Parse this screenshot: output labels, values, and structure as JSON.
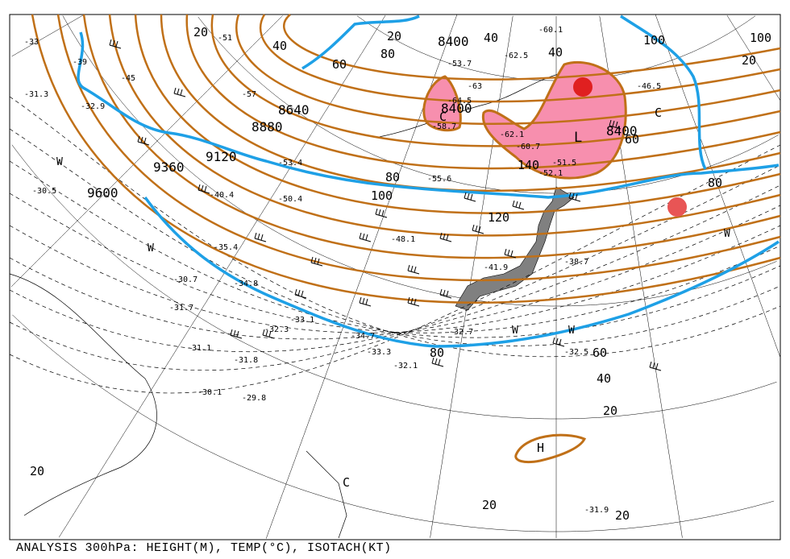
{
  "caption": "ANALYSIS 300hPa: HEIGHT(M), TEMP(°C), ISOTACH(KT)",
  "colors": {
    "height_contour": "#c07018",
    "jet_axis": "#1ea0e6",
    "low_fill": "#f78fae",
    "low_center": "#e02020",
    "land": "#808080"
  },
  "height_labels": [
    "9600",
    "9360",
    "9120",
    "8880",
    "8640",
    "8400",
    "8400",
    "8400"
  ],
  "isotach_labels": [
    "20",
    "40",
    "60",
    "80",
    "100",
    "20",
    "40",
    "80",
    "100",
    "120",
    "140",
    "80",
    "60",
    "40",
    "20",
    "20",
    "20",
    "20",
    "40",
    "60",
    "80",
    "100",
    "20"
  ],
  "temp_labels": [
    "-33",
    "-39",
    "-45",
    "-51",
    "-57",
    "-63",
    "-60.1",
    "-62.5",
    "-53.7",
    "-64.5",
    "-58.7",
    "-62.1",
    "-60.7",
    "-51.5",
    "-52.1",
    "-55.6",
    "-53.4",
    "-50.4",
    "-41.9",
    "-38.7",
    "-34.8",
    "-33.1",
    "-32.3",
    "-31.7",
    "-30.7",
    "-30.5",
    "-31.1",
    "-31.8",
    "-30.1",
    "-29.8",
    "-32.7",
    "-32.5",
    "-33.3",
    "-34.7",
    "-32.1",
    "-31.9",
    "-46.5",
    "-48.1",
    "-40.4",
    "-35.4",
    "-32.9",
    "-31.3"
  ],
  "pressure_centers": [
    "L",
    "H"
  ],
  "cold_marks": [
    "C",
    "C",
    "C"
  ],
  "warm_marks": [
    "W",
    "W",
    "W",
    "W",
    "W"
  ]
}
